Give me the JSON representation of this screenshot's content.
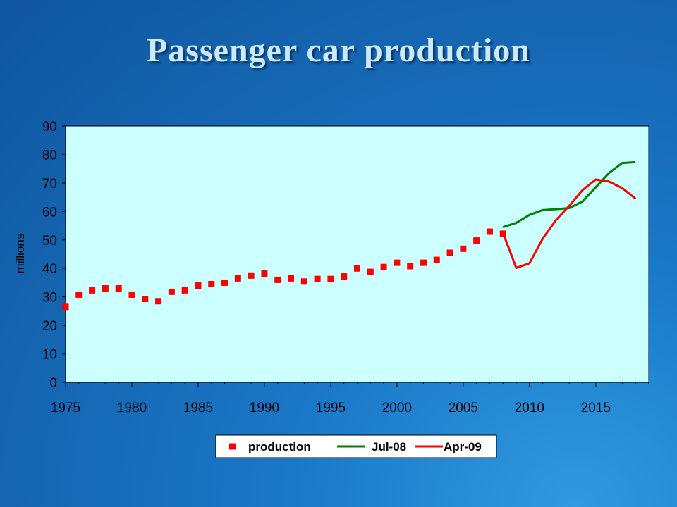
{
  "slide": {
    "title": "Passenger car production"
  },
  "colors": {
    "plot_bg": "#ccffff",
    "production": "#ff0000",
    "jul08": "#008000",
    "apr09": "#ff0000"
  },
  "chart_data": {
    "type": "line",
    "title": "Passenger car production",
    "xlabel": "",
    "ylabel": "millions",
    "xlim": [
      1975,
      2019
    ],
    "ylim": [
      0,
      90
    ],
    "x_ticks": [
      1975,
      1980,
      1985,
      1990,
      1995,
      2000,
      2005,
      2010,
      2015
    ],
    "y_ticks": [
      0,
      10,
      20,
      30,
      40,
      50,
      60,
      70,
      80,
      90
    ],
    "grid": false,
    "legend_position": "bottom",
    "series": [
      {
        "name": "production",
        "style": "markers",
        "x": [
          1975,
          1976,
          1977,
          1978,
          1979,
          1980,
          1981,
          1982,
          1983,
          1984,
          1985,
          1986,
          1987,
          1988,
          1989,
          1990,
          1991,
          1992,
          1993,
          1994,
          1995,
          1996,
          1997,
          1998,
          1999,
          2000,
          2001,
          2002,
          2003,
          2004,
          2005,
          2006,
          2007,
          2008
        ],
        "y": [
          26.5,
          30.8,
          32.3,
          33.0,
          33.0,
          30.8,
          29.3,
          28.5,
          31.8,
          32.3,
          34.0,
          34.5,
          35.0,
          36.5,
          37.5,
          38.2,
          36.0,
          36.5,
          35.4,
          36.3,
          36.3,
          37.2,
          40.0,
          38.8,
          40.5,
          42.0,
          40.8,
          42.0,
          43.0,
          45.5,
          46.9,
          49.8,
          52.9,
          52.2
        ]
      },
      {
        "name": "Jul-08",
        "style": "line",
        "x": [
          2008,
          2009,
          2010,
          2011,
          2012,
          2013,
          2014,
          2015,
          2016,
          2017,
          2018
        ],
        "y": [
          54.5,
          56.0,
          58.8,
          60.5,
          60.8,
          61.2,
          63.5,
          68.5,
          73.5,
          77.0,
          77.3
        ]
      },
      {
        "name": "Apr-09",
        "style": "line",
        "x": [
          2008,
          2009,
          2010,
          2011,
          2012,
          2013,
          2014,
          2015,
          2016,
          2017,
          2018
        ],
        "y": [
          52.5,
          40.2,
          41.8,
          50.5,
          57.0,
          62.0,
          67.5,
          71.2,
          70.5,
          68.2,
          64.5
        ]
      }
    ]
  }
}
